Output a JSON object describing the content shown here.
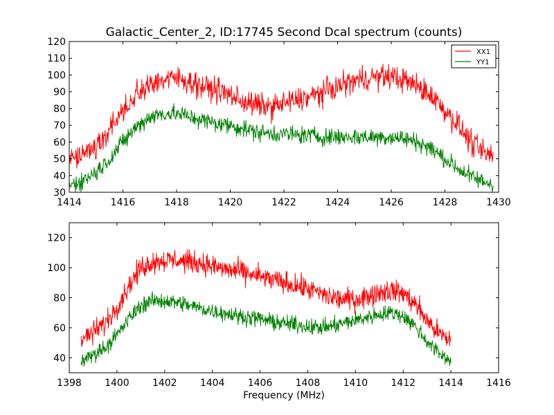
{
  "chart_data": [
    {
      "type": "line",
      "title": "Galactic_Center_2, ID:17745 Second Dcal spectrum (counts)",
      "xlabel": "",
      "ylabel": "",
      "xlim": [
        1414,
        1430
      ],
      "ylim": [
        30,
        120
      ],
      "xticks": [
        1414,
        1416,
        1418,
        1420,
        1422,
        1424,
        1426,
        1428,
        1430
      ],
      "yticks": [
        30,
        40,
        50,
        60,
        70,
        80,
        90,
        100,
        110,
        120
      ],
      "legend": {
        "placement": "top-right",
        "entries": [
          "XX1",
          "YY1"
        ]
      },
      "grid": false,
      "series": [
        {
          "name": "XX1",
          "color": "#ff0000",
          "x": [
            1414.0,
            1414.5,
            1415.0,
            1415.5,
            1416.0,
            1416.5,
            1417.0,
            1417.5,
            1418.0,
            1418.5,
            1419.0,
            1419.5,
            1420.0,
            1420.5,
            1421.0,
            1421.5,
            1422.0,
            1422.5,
            1423.0,
            1423.5,
            1424.0,
            1424.5,
            1425.0,
            1425.5,
            1426.0,
            1426.5,
            1427.0,
            1427.5,
            1428.0,
            1428.5,
            1429.0,
            1429.5,
            1429.8
          ],
          "values": [
            48,
            52,
            57,
            67,
            79,
            88,
            95,
            97,
            98,
            96,
            93,
            91,
            88,
            84,
            82,
            81,
            83,
            85,
            87,
            90,
            93,
            96,
            98,
            99,
            99,
            97,
            93,
            88,
            79,
            70,
            59,
            53,
            51
          ]
        },
        {
          "name": "YY1",
          "color": "#008000",
          "x": [
            1414.0,
            1414.5,
            1415.0,
            1415.5,
            1416.0,
            1416.5,
            1417.0,
            1417.5,
            1418.0,
            1418.5,
            1419.0,
            1419.5,
            1420.0,
            1420.5,
            1421.0,
            1421.5,
            1422.0,
            1422.5,
            1423.0,
            1423.5,
            1424.0,
            1424.5,
            1425.0,
            1425.5,
            1426.0,
            1426.5,
            1427.0,
            1427.5,
            1428.0,
            1428.5,
            1429.0,
            1429.5,
            1429.8
          ],
          "values": [
            34,
            37,
            42,
            50,
            60,
            69,
            75,
            77,
            77,
            75,
            73,
            71,
            70,
            68,
            66,
            65,
            65,
            64,
            64,
            63,
            63,
            63,
            63,
            63,
            63,
            62,
            60,
            56,
            50,
            44,
            39,
            36,
            35
          ]
        }
      ]
    },
    {
      "type": "line",
      "title": "",
      "xlabel": "Frequency (MHz)",
      "ylabel": "",
      "xlim": [
        1398,
        1416
      ],
      "ylim": [
        30,
        130
      ],
      "xticks": [
        1398,
        1400,
        1402,
        1404,
        1406,
        1408,
        1410,
        1412,
        1414,
        1416
      ],
      "yticks": [
        40,
        60,
        80,
        100,
        120
      ],
      "grid": false,
      "series": [
        {
          "name": "",
          "color": "#ff0000",
          "x": [
            1398.5,
            1399.0,
            1399.5,
            1400.0,
            1400.5,
            1401.0,
            1401.5,
            1402.0,
            1402.5,
            1403.0,
            1403.5,
            1404.0,
            1404.5,
            1405.0,
            1405.5,
            1406.0,
            1406.5,
            1407.0,
            1407.5,
            1408.0,
            1408.5,
            1409.0,
            1409.5,
            1410.0,
            1410.5,
            1411.0,
            1411.5,
            1412.0,
            1412.5,
            1413.0,
            1413.5,
            1414.0
          ],
          "values": [
            52,
            57,
            63,
            74,
            88,
            100,
            104,
            105,
            105,
            104,
            103,
            101,
            99,
            98,
            96,
            94,
            92,
            90,
            88,
            86,
            83,
            80,
            79,
            79,
            81,
            84,
            85,
            83,
            76,
            65,
            56,
            51
          ]
        },
        {
          "name": "",
          "color": "#008000",
          "x": [
            1398.5,
            1399.0,
            1399.5,
            1400.0,
            1400.5,
            1401.0,
            1401.5,
            1402.0,
            1402.5,
            1403.0,
            1403.5,
            1404.0,
            1404.5,
            1405.0,
            1405.5,
            1406.0,
            1406.5,
            1407.0,
            1407.5,
            1408.0,
            1408.5,
            1409.0,
            1409.5,
            1410.0,
            1410.5,
            1411.0,
            1411.5,
            1412.0,
            1412.5,
            1413.0,
            1413.5,
            1414.0
          ],
          "values": [
            38,
            42,
            47,
            55,
            66,
            75,
            78,
            78,
            77,
            75,
            73,
            71,
            70,
            68,
            67,
            66,
            64,
            63,
            62,
            61,
            60,
            61,
            63,
            65,
            67,
            69,
            70,
            68,
            61,
            51,
            43,
            38
          ]
        }
      ]
    }
  ]
}
